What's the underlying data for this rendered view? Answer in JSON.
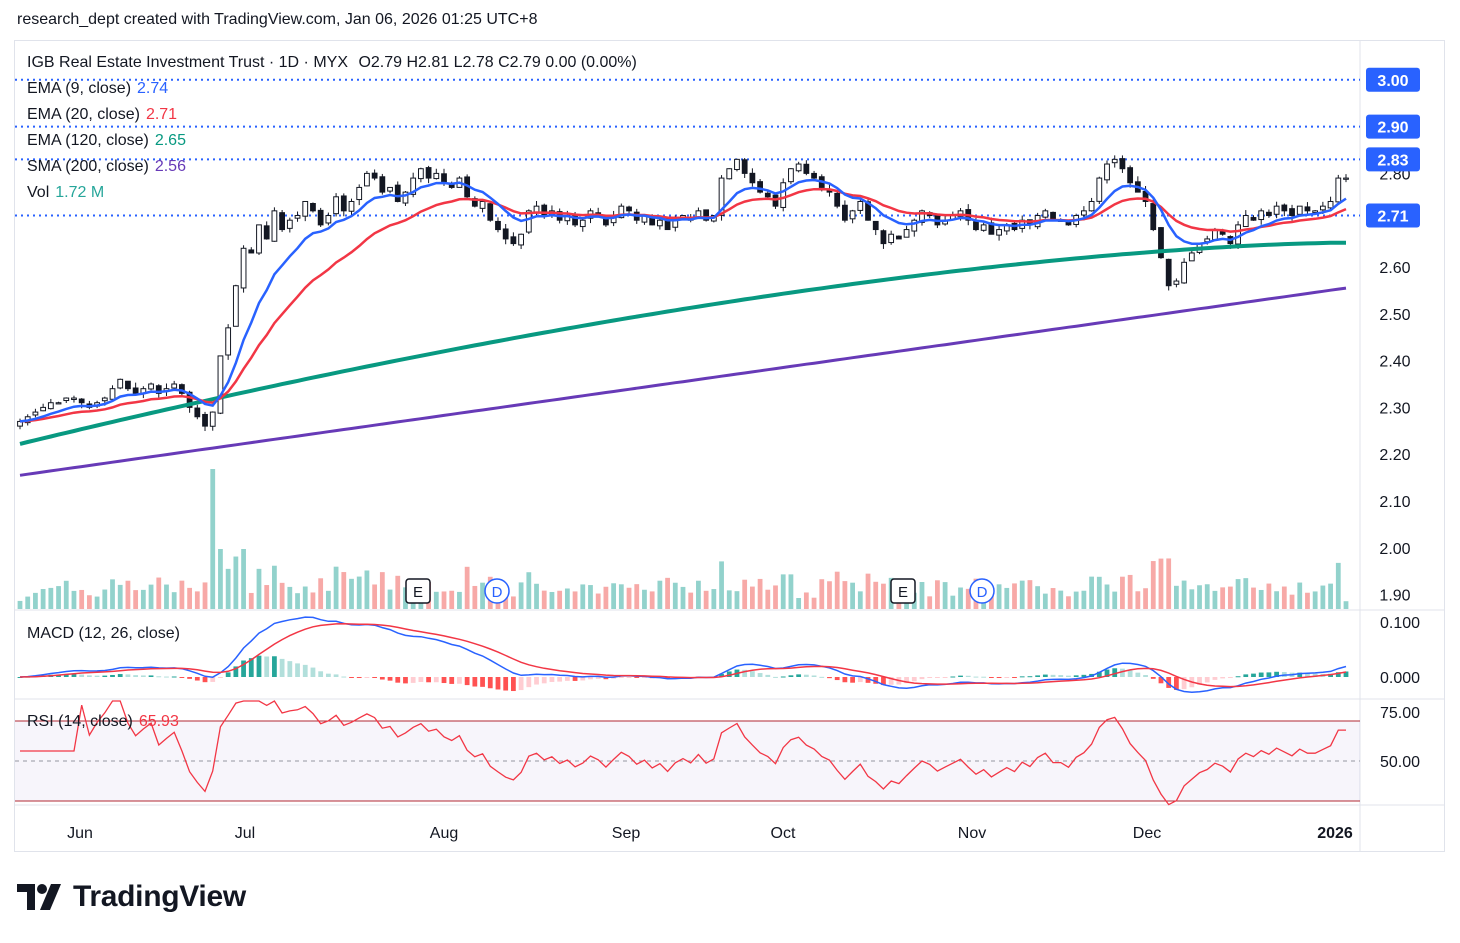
{
  "header": {
    "text": "research_dept created with TradingView.com, Jan 06, 2026 01:25 UTC+8"
  },
  "footer": {
    "brand": "TradingView"
  },
  "legend": {
    "title": "IGB Real Estate Investment Trust · 1D · MYX",
    "ohlc": "O2.79  H2.81  L2.78  C2.79  0.00 (0.00%)",
    "ema9": {
      "label": "EMA (9, close)",
      "value": "2.74",
      "color": "#2962ff"
    },
    "ema20": {
      "label": "EMA (20, close)",
      "value": "2.71",
      "color": "#f23645"
    },
    "ema120": {
      "label": "EMA (120, close)",
      "value": "2.65",
      "color": "#089981"
    },
    "sma200": {
      "label": "SMA (200, close)",
      "value": "2.56",
      "color": "#673ab7"
    },
    "vol": {
      "label": "Vol",
      "value": "1.72 M",
      "color": "#26a69a"
    },
    "macd": {
      "label": "MACD (12, 26, close)"
    },
    "rsi": {
      "label": "RSI (14, close)",
      "value": "65.93",
      "color": "#f23645"
    }
  },
  "chart_data": {
    "type": "candlestick",
    "symbol": "IGB Real Estate Investment Trust",
    "interval": "1D",
    "exchange": "MYX",
    "x_ticks": [
      "Jun",
      "Jul",
      "Aug",
      "Sep",
      "Oct",
      "Nov",
      "Dec",
      "2026"
    ],
    "price_axis": {
      "ticks": [
        "2.80",
        "2.70",
        "2.60",
        "2.50",
        "2.40",
        "2.30",
        "2.20",
        "2.10",
        "2.00",
        "1.90"
      ],
      "range": [
        1.87,
        2.93
      ]
    },
    "price_labels": [
      {
        "value": "3.00",
        "color": "#2962ff"
      },
      {
        "value": "2.90",
        "color": "#2962ff"
      },
      {
        "value": "2.83",
        "color": "#2962ff"
      },
      {
        "value": "2.71",
        "color": "#2962ff"
      }
    ],
    "macd_axis": {
      "ticks": [
        "0.100",
        "0.000"
      ]
    },
    "rsi_axis": {
      "ticks": [
        "75.00",
        "50.00"
      ],
      "bands": [
        70,
        30
      ]
    },
    "events": [
      {
        "letter": "E",
        "month": "Aug"
      },
      {
        "letter": "D",
        "month": "Aug"
      },
      {
        "letter": "E",
        "month": "Oct"
      },
      {
        "letter": "D",
        "month": "Nov"
      }
    ],
    "close_series": [
      2.27,
      2.28,
      2.29,
      2.3,
      2.31,
      2.31,
      2.32,
      2.32,
      2.31,
      2.3,
      2.31,
      2.32,
      2.34,
      2.36,
      2.34,
      2.33,
      2.34,
      2.35,
      2.33,
      2.34,
      2.35,
      2.33,
      2.3,
      2.28,
      2.26,
      2.29,
      2.41,
      2.47,
      2.56,
      2.64,
      2.63,
      2.69,
      2.66,
      2.72,
      2.68,
      2.7,
      2.71,
      2.74,
      2.72,
      2.69,
      2.71,
      2.75,
      2.72,
      2.74,
      2.77,
      2.8,
      2.79,
      2.76,
      2.77,
      2.74,
      2.76,
      2.79,
      2.81,
      2.79,
      2.8,
      2.78,
      2.77,
      2.79,
      2.75,
      2.73,
      2.74,
      2.7,
      2.68,
      2.66,
      2.65,
      2.67,
      2.72,
      2.73,
      2.71,
      2.72,
      2.7,
      2.71,
      2.69,
      2.7,
      2.72,
      2.71,
      2.69,
      2.71,
      2.73,
      2.72,
      2.7,
      2.71,
      2.69,
      2.7,
      2.68,
      2.7,
      2.71,
      2.7,
      2.72,
      2.7,
      2.71,
      2.79,
      2.81,
      2.83,
      2.8,
      2.78,
      2.76,
      2.75,
      2.73,
      2.78,
      2.81,
      2.82,
      2.8,
      2.79,
      2.77,
      2.76,
      2.73,
      2.7,
      2.72,
      2.74,
      2.7,
      2.68,
      2.65,
      2.67,
      2.66,
      2.68,
      2.7,
      2.72,
      2.71,
      2.69,
      2.7,
      2.71,
      2.72,
      2.7,
      2.68,
      2.69,
      2.67,
      2.68,
      2.69,
      2.68,
      2.7,
      2.69,
      2.71,
      2.72,
      2.7,
      2.7,
      2.69,
      2.71,
      2.72,
      2.74,
      2.79,
      2.82,
      2.83,
      2.81,
      2.78,
      2.76,
      2.74,
      2.68,
      2.62,
      2.56,
      2.57,
      2.61,
      2.63,
      2.65,
      2.66,
      2.68,
      2.67,
      2.65,
      2.69,
      2.71,
      2.7,
      2.72,
      2.71,
      2.73,
      2.72,
      2.71,
      2.73,
      2.72,
      2.72,
      2.73,
      2.74,
      2.79,
      2.79
    ]
  }
}
